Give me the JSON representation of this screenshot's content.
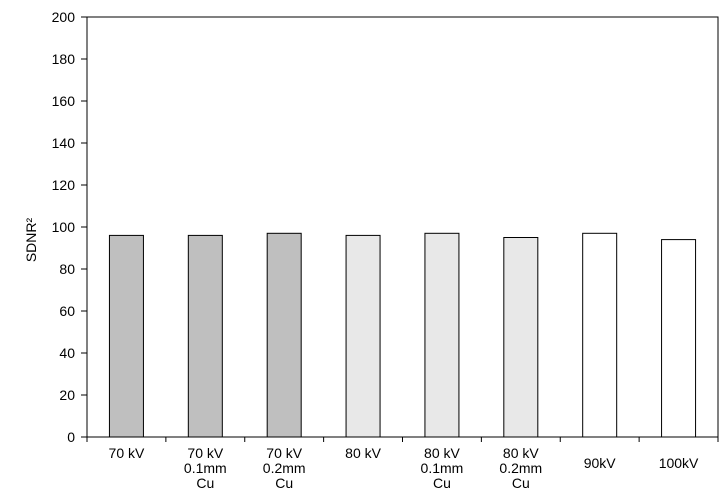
{
  "chart_data": {
    "type": "bar",
    "ylabel": "SDNR²",
    "ylim": [
      0,
      200
    ],
    "yticks": [
      0,
      20,
      40,
      60,
      80,
      100,
      120,
      140,
      160,
      180,
      200
    ],
    "grid": false,
    "categories": [
      [
        "70 kV"
      ],
      [
        "70 kV",
        "0.1mm",
        "Cu"
      ],
      [
        "70 kV",
        "0.2mm",
        "Cu"
      ],
      [
        "80 kV"
      ],
      [
        "80 kV",
        "0.1mm",
        "Cu"
      ],
      [
        "80 kV",
        "0.2mm",
        "Cu"
      ],
      [
        "90kV"
      ],
      [
        "100kV"
      ]
    ],
    "values": [
      96,
      96,
      97,
      96,
      97,
      95,
      97,
      94
    ],
    "bar_colors": [
      "#bfbfbf",
      "#bfbfbf",
      "#bfbfbf",
      "#e8e8e8",
      "#e8e8e8",
      "#e8e8e8",
      "#ffffff",
      "#ffffff"
    ],
    "bar_stroke": "#000000",
    "axis_color": "#000000"
  }
}
